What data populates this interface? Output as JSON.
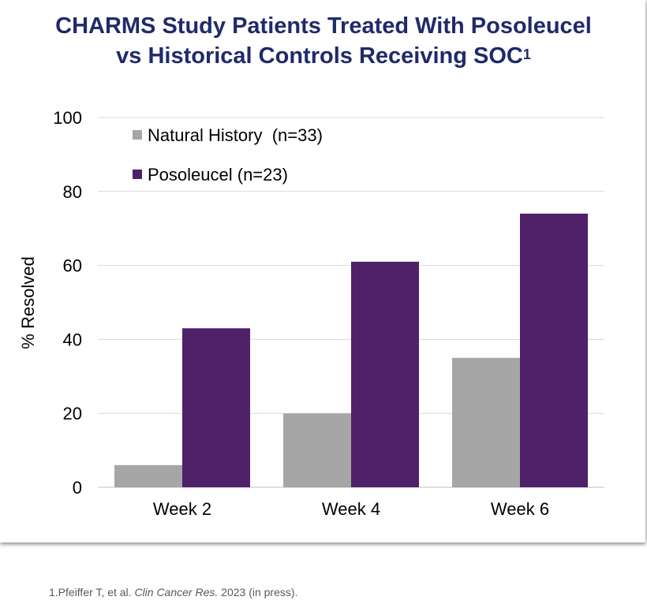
{
  "title": {
    "line1": "CHARMS Study Patients Treated With Posoleucel",
    "line2": "vs Historical Controls Receiving SOC",
    "superscript": "1"
  },
  "footnote": {
    "prefix": "1.Pfeiffer T, et al. ",
    "journal": "Clin Cancer Res.",
    "suffix": " 2023 (in press)."
  },
  "colors": {
    "title": "#1f2a6b",
    "natural_history": "#a6a6a6",
    "posoleucel": "#4e2169"
  },
  "chart_data": {
    "type": "bar",
    "categories": [
      "Week 2",
      "Week 4",
      "Week 6"
    ],
    "series": [
      {
        "name": "Natural History  (n=33)",
        "values": [
          6,
          20,
          35
        ]
      },
      {
        "name": "Posoleucel (n=23)",
        "values": [
          43,
          61,
          74
        ]
      }
    ],
    "ylabel": "% Resolved",
    "ylim": [
      0,
      100
    ],
    "yticks": [
      0,
      20,
      40,
      60,
      80,
      100
    ],
    "grid": true,
    "legend": "top-left"
  }
}
